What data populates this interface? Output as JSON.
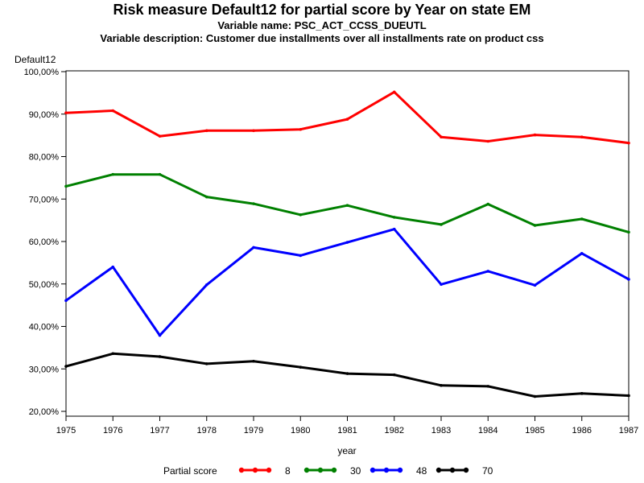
{
  "titles": {
    "title": "Risk measure Default12 for partial score by Year on state EM",
    "subtitle1": "Variable name: PSC_ACT_CCSS_DUEUTL",
    "subtitle2": "Variable description: Customer due installments over all installments rate on product css"
  },
  "chart_data": {
    "type": "line",
    "title": "Risk measure Default12 for partial score by Year on state EM",
    "xlabel": "year",
    "ylabel": "Default12",
    "x": [
      1975,
      1976,
      1977,
      1978,
      1979,
      1980,
      1981,
      1982,
      1983,
      1984,
      1985,
      1986,
      1987
    ],
    "ylim": [
      20,
      100
    ],
    "yticks": [
      "20,00%",
      "30,00%",
      "40,00%",
      "50,00%",
      "60,00%",
      "70,00%",
      "80,00%",
      "90,00%",
      "100,00%"
    ],
    "ytick_values": [
      20,
      30,
      40,
      50,
      60,
      70,
      80,
      90,
      100
    ],
    "grid": false,
    "legend": {
      "title": "Partial score",
      "position": "bottom"
    },
    "series": [
      {
        "name": "8",
        "color": "#ff0000",
        "values": [
          90.3,
          90.8,
          84.8,
          86.1,
          86.1,
          86.4,
          88.8,
          95.2,
          84.6,
          83.6,
          85.1,
          84.6,
          83.2
        ]
      },
      {
        "name": "30",
        "color": "#008000",
        "values": [
          73.0,
          75.8,
          75.8,
          70.5,
          68.9,
          66.3,
          68.5,
          65.7,
          64.0,
          68.8,
          63.8,
          65.3,
          62.2
        ]
      },
      {
        "name": "48",
        "color": "#0000ff",
        "values": [
          46.1,
          54.0,
          37.9,
          49.8,
          58.6,
          56.7,
          59.8,
          62.9,
          49.9,
          53.0,
          49.7,
          57.2,
          51.1
        ]
      },
      {
        "name": "70",
        "color": "#000000",
        "values": [
          30.6,
          33.6,
          32.9,
          31.2,
          31.8,
          30.4,
          28.9,
          28.6,
          26.1,
          25.9,
          23.5,
          24.2,
          23.7
        ]
      }
    ]
  }
}
